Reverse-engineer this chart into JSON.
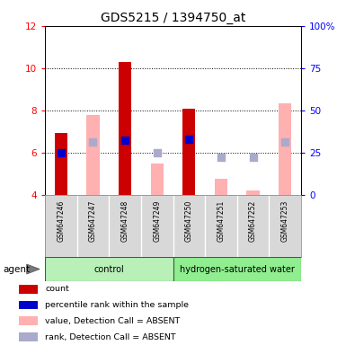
{
  "title": "GDS5215 / 1394750_at",
  "samples": [
    "GSM647246",
    "GSM647247",
    "GSM647248",
    "GSM647249",
    "GSM647250",
    "GSM647251",
    "GSM647252",
    "GSM647253"
  ],
  "ylim_left": [
    4,
    12
  ],
  "ylim_right": [
    0,
    100
  ],
  "yticks_left": [
    4,
    6,
    8,
    10,
    12
  ],
  "yticks_right": [
    0,
    25,
    50,
    75,
    100
  ],
  "ytick_labels_right": [
    "0",
    "25",
    "50",
    "75",
    "100%"
  ],
  "red_bars": [
    6.95,
    null,
    10.3,
    null,
    8.1,
    null,
    null,
    null
  ],
  "blue_dots": [
    6.0,
    null,
    6.6,
    null,
    6.65,
    null,
    null,
    null
  ],
  "pink_bars": [
    null,
    7.78,
    null,
    5.48,
    null,
    4.78,
    4.2,
    8.35
  ],
  "light_blue_dots": [
    null,
    6.5,
    null,
    5.98,
    null,
    5.78,
    5.78,
    6.5
  ],
  "groups": [
    {
      "label": "control",
      "start": 0,
      "end": 3,
      "color": "#b8f0b8"
    },
    {
      "label": "hydrogen-saturated water",
      "start": 4,
      "end": 7,
      "color": "#90ee90"
    }
  ],
  "bar_width": 0.4,
  "dot_size": 30,
  "red_color": "#cc0000",
  "blue_color": "#0000cc",
  "pink_color": "#ffb0b0",
  "lightblue_color": "#aaaacc",
  "bg_color": "#d8d8d8",
  "agent_label": "agent",
  "legend_items": [
    {
      "label": "count",
      "color": "#cc0000"
    },
    {
      "label": "percentile rank within the sample",
      "color": "#0000cc"
    },
    {
      "label": "value, Detection Call = ABSENT",
      "color": "#ffb0b0"
    },
    {
      "label": "rank, Detection Call = ABSENT",
      "color": "#aaaacc"
    }
  ]
}
